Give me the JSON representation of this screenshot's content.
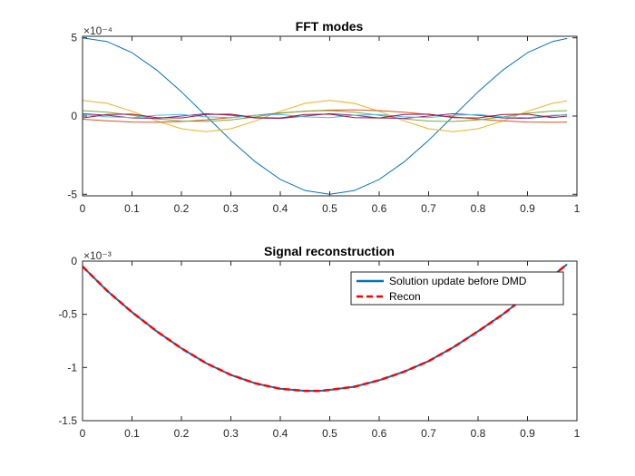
{
  "chart_data": [
    {
      "type": "line",
      "title": "FFT modes",
      "xlabel": "",
      "ylabel": "",
      "exponent_label": "×10⁻⁴",
      "xlim": [
        0,
        1
      ],
      "ylim": [
        -5.1,
        5.1
      ],
      "xticks": [
        0,
        0.1,
        0.2,
        0.3,
        0.4,
        0.5,
        0.6,
        0.7,
        0.8,
        0.9,
        1
      ],
      "xtick_labels": [
        "0",
        "0.1",
        "0.2",
        "0.3",
        "0.4",
        "0.5",
        "0.6",
        "0.7",
        "0.8",
        "0.9",
        "1"
      ],
      "yticks": [
        -5,
        0,
        5
      ],
      "ytick_labels": [
        "-5",
        "0",
        "5"
      ],
      "grid": false,
      "x": [
        0,
        0.05,
        0.1,
        0.15,
        0.2,
        0.25,
        0.3,
        0.35,
        0.4,
        0.45,
        0.5,
        0.55,
        0.6,
        0.65,
        0.7,
        0.75,
        0.8,
        0.85,
        0.9,
        0.95,
        0.98
      ],
      "series": [
        {
          "color": "#0072BD",
          "values": [
            5.0,
            4.76,
            4.05,
            2.94,
            1.55,
            0.0,
            -1.55,
            -2.94,
            -4.05,
            -4.76,
            -5.0,
            -4.76,
            -4.05,
            -2.94,
            -1.55,
            0.0,
            1.55,
            2.94,
            4.05,
            4.76,
            4.96
          ]
        },
        {
          "color": "#EDB120",
          "values": [
            1.0,
            0.81,
            0.31,
            -0.31,
            -0.81,
            -1.0,
            -0.81,
            -0.31,
            0.31,
            0.81,
            1.0,
            0.81,
            0.31,
            -0.31,
            -0.81,
            -1.0,
            -0.81,
            -0.31,
            0.31,
            0.81,
            0.97
          ]
        },
        {
          "color": "#D95319",
          "values": [
            -0.2,
            -0.3,
            -0.38,
            -0.4,
            -0.35,
            -0.25,
            -0.1,
            0.05,
            0.2,
            0.3,
            0.38,
            0.4,
            0.35,
            0.25,
            0.1,
            -0.05,
            -0.2,
            -0.3,
            -0.38,
            -0.4,
            -0.38
          ]
        },
        {
          "color": "#77AC30",
          "values": [
            0.35,
            0.25,
            0.05,
            -0.18,
            -0.32,
            -0.35,
            -0.25,
            -0.05,
            0.18,
            0.32,
            0.35,
            0.25,
            0.05,
            -0.18,
            -0.32,
            -0.35,
            -0.25,
            -0.05,
            0.18,
            0.32,
            0.34
          ]
        },
        {
          "color": "#7E2F8E",
          "values": [
            0.15,
            0.05,
            -0.12,
            -0.15,
            0.0,
            0.15,
            0.05,
            -0.12,
            -0.15,
            0.0,
            0.15,
            0.05,
            -0.12,
            -0.15,
            0.0,
            0.15,
            0.05,
            -0.12,
            -0.15,
            0.0,
            0.1
          ]
        },
        {
          "color": "#4DBEEE",
          "values": [
            0.1,
            -0.05,
            -0.1,
            0.05,
            0.1,
            -0.05,
            -0.1,
            0.05,
            0.1,
            -0.05,
            -0.1,
            0.05,
            0.1,
            -0.05,
            -0.1,
            0.05,
            0.1,
            -0.05,
            -0.1,
            0.05,
            0.08
          ]
        },
        {
          "color": "#A2142F",
          "values": [
            -0.12,
            0.1,
            0.12,
            -0.1,
            -0.12,
            0.1,
            0.12,
            -0.1,
            -0.12,
            0.1,
            0.12,
            -0.1,
            -0.12,
            0.1,
            0.12,
            -0.1,
            -0.12,
            0.1,
            0.12,
            -0.1,
            0.0
          ]
        }
      ]
    },
    {
      "type": "line",
      "title": "Signal reconstruction",
      "xlabel": "",
      "ylabel": "",
      "exponent_label": "×10⁻³",
      "xlim": [
        0,
        1
      ],
      "ylim": [
        -1.5,
        0
      ],
      "xticks": [
        0,
        0.1,
        0.2,
        0.3,
        0.4,
        0.5,
        0.6,
        0.7,
        0.8,
        0.9,
        1
      ],
      "xtick_labels": [
        "0",
        "0.1",
        "0.2",
        "0.3",
        "0.4",
        "0.5",
        "0.6",
        "0.7",
        "0.8",
        "0.9",
        "1"
      ],
      "yticks": [
        -1.5,
        -1,
        -0.5,
        0
      ],
      "ytick_labels": [
        "-1.5",
        "-1",
        "-0.5",
        "0"
      ],
      "grid": false,
      "legend": {
        "placement": "top-right",
        "entries": [
          "Solution update before DMD",
          "Recon"
        ]
      },
      "x": [
        0,
        0.05,
        0.1,
        0.15,
        0.2,
        0.25,
        0.3,
        0.35,
        0.4,
        0.45,
        0.48,
        0.5,
        0.55,
        0.6,
        0.65,
        0.7,
        0.75,
        0.8,
        0.85,
        0.9,
        0.95,
        0.98
      ],
      "series": [
        {
          "name": "Solution update before DMD",
          "color": "#0072BD",
          "style": "solid",
          "values": [
            -0.05,
            -0.28,
            -0.48,
            -0.66,
            -0.82,
            -0.96,
            -1.07,
            -1.15,
            -1.2,
            -1.22,
            -1.22,
            -1.21,
            -1.18,
            -1.12,
            -1.04,
            -0.94,
            -0.81,
            -0.66,
            -0.5,
            -0.32,
            -0.14,
            -0.03
          ]
        },
        {
          "name": "Recon",
          "color": "#FF0000",
          "style": "dashed",
          "values": [
            -0.05,
            -0.28,
            -0.48,
            -0.66,
            -0.82,
            -0.96,
            -1.07,
            -1.15,
            -1.2,
            -1.22,
            -1.22,
            -1.21,
            -1.18,
            -1.12,
            -1.04,
            -0.94,
            -0.81,
            -0.66,
            -0.5,
            -0.32,
            -0.14,
            -0.03
          ]
        }
      ]
    }
  ]
}
